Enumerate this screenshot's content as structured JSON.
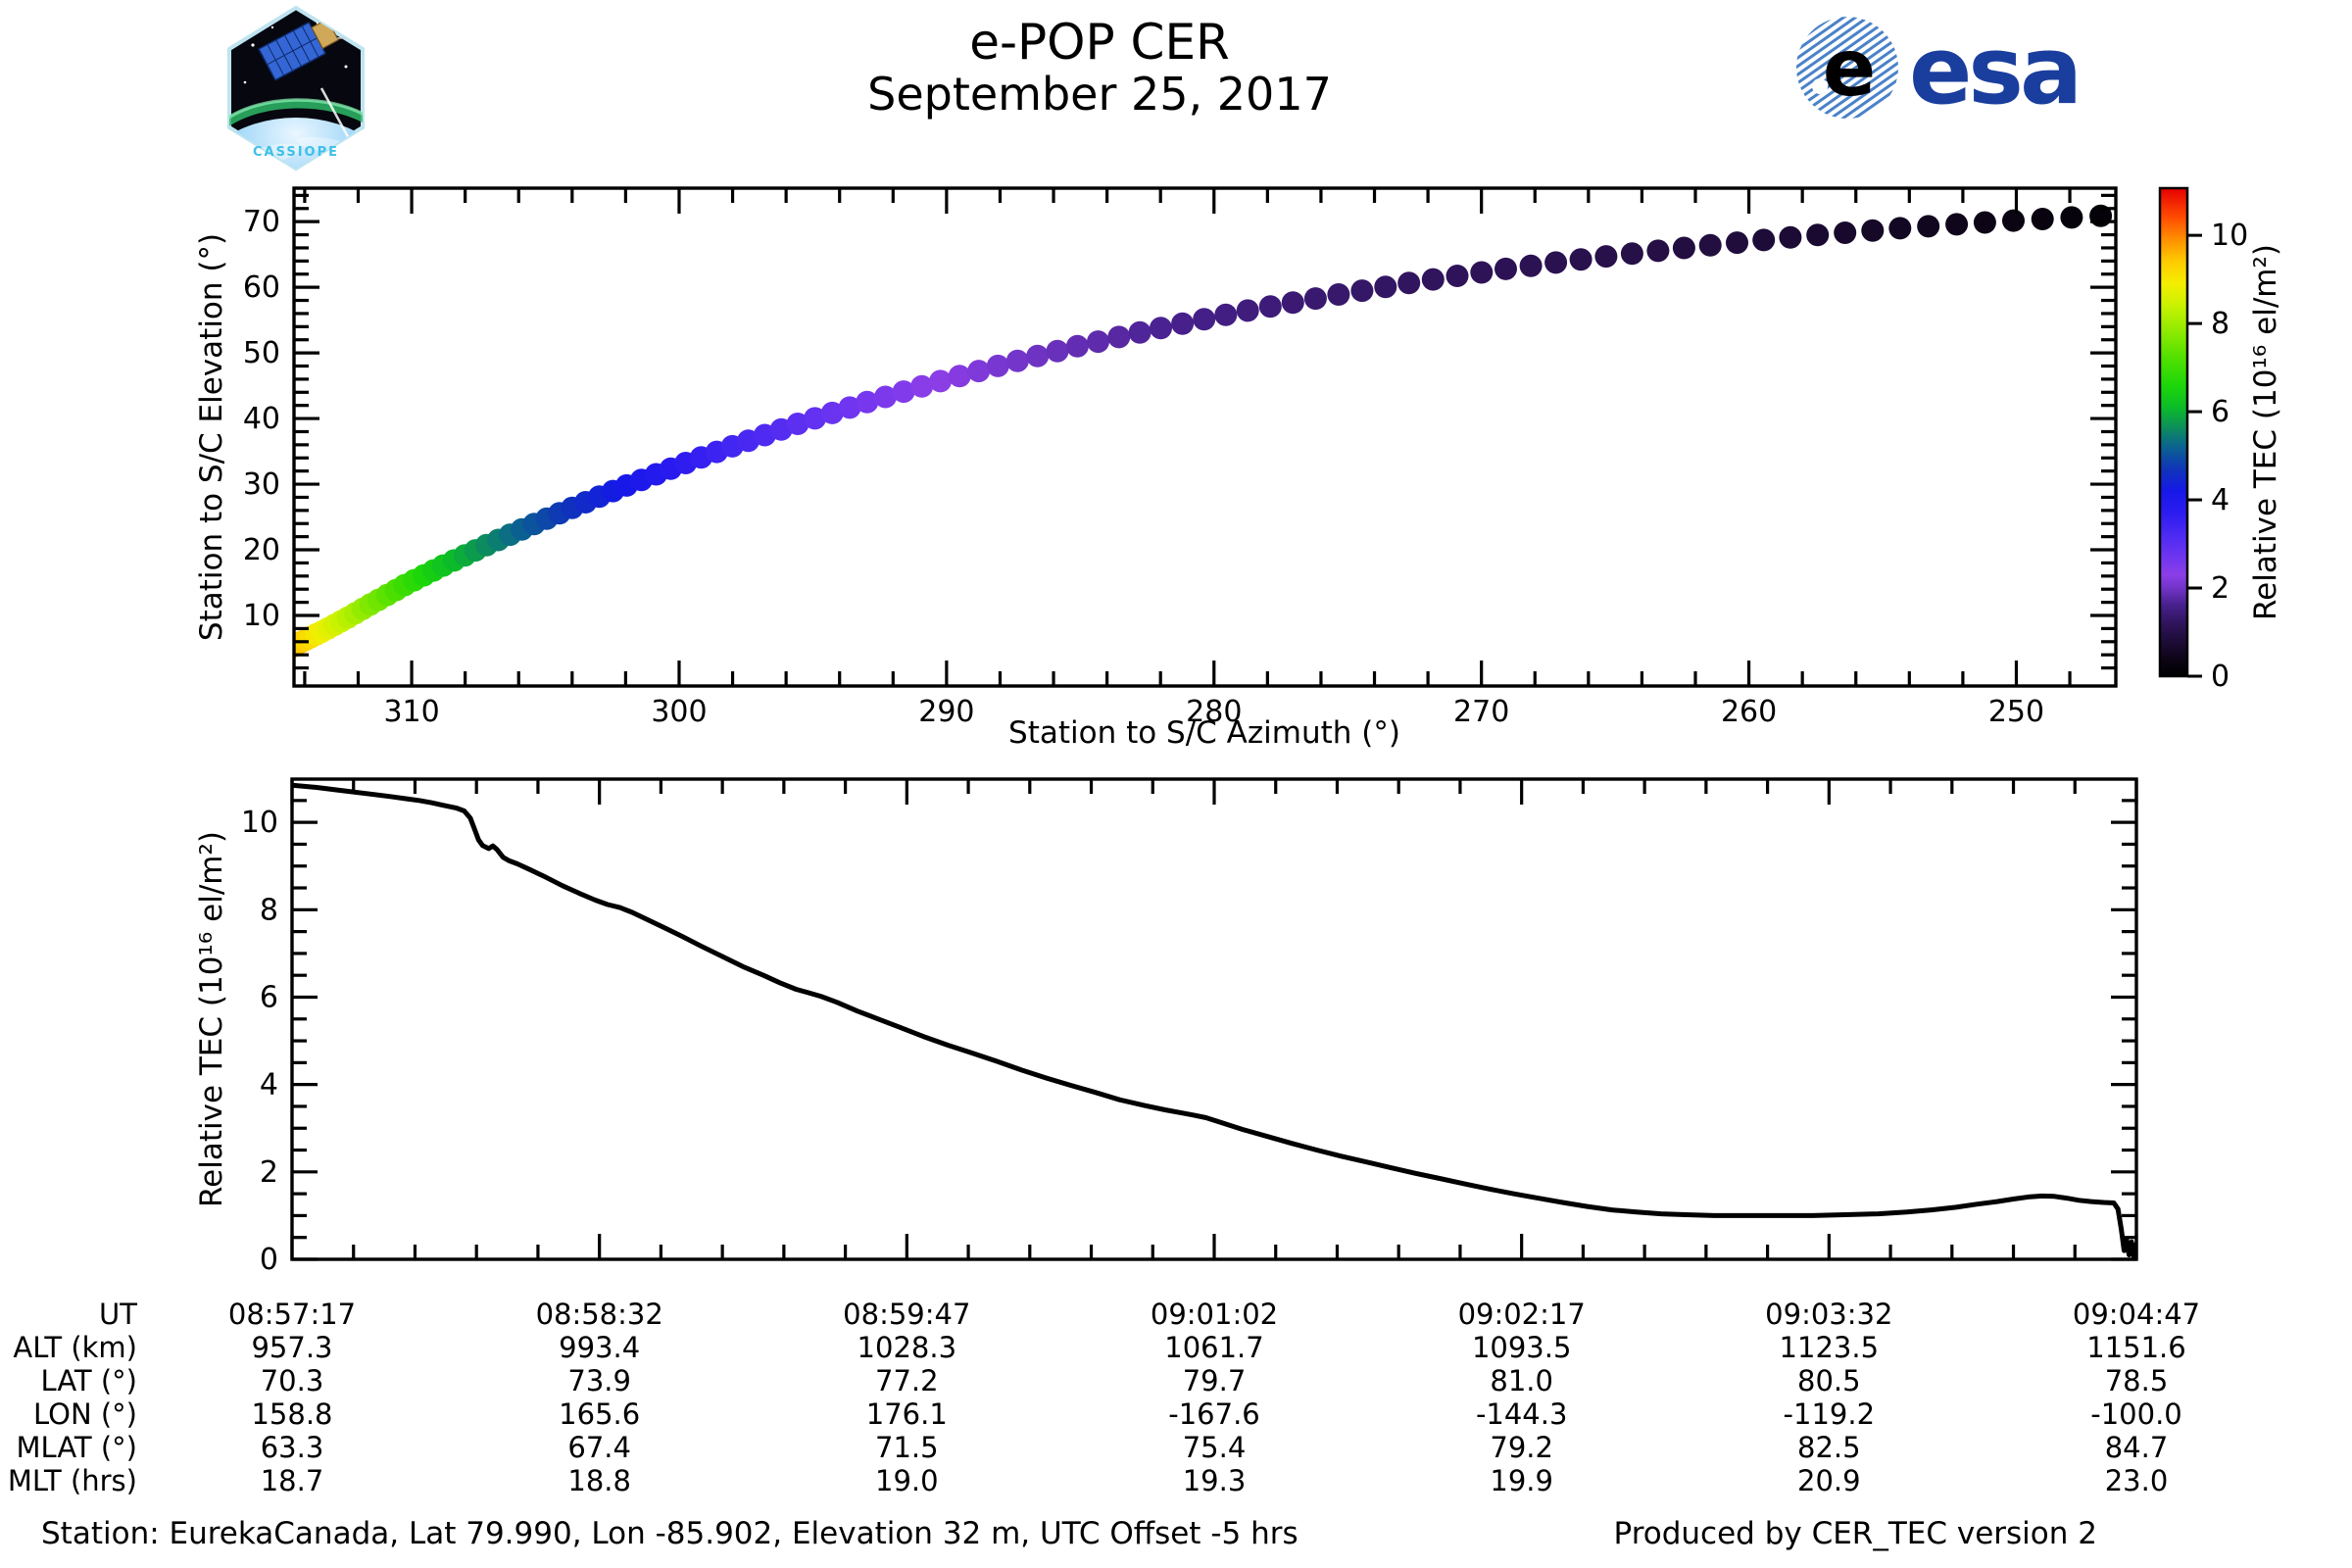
{
  "header": {
    "title": "e-POP CER",
    "subtitle": "September 25, 2017",
    "cassiope_patch_label": "CASSIOPE",
    "esa_wordmark": "esa"
  },
  "colors": {
    "esa_blue": "#1a3e9e",
    "esa_stripe_blue": "#4a82c8",
    "line_color": "#000000",
    "axis_color": "#000000"
  },
  "chart_data": [
    {
      "type": "scatter",
      "name": "station-to-spacecraft-pass",
      "xlabel": "Station to S/C Azimuth (°)",
      "ylabel": "Station to S/C Elevation (°)",
      "x_axis_reversed": true,
      "xlim": [
        314.4,
        246.3
      ],
      "ylim": [
        0,
        75
      ],
      "x_major_ticks": [
        310,
        300,
        290,
        280,
        270,
        260,
        250
      ],
      "y_major_ticks": [
        10,
        20,
        30,
        40,
        50,
        60,
        70
      ],
      "x_minor_step": 2,
      "y_minor_step": 2,
      "colorbar": {
        "label": "Relative TEC (10¹⁶ el/m²)",
        "ticks": [
          0,
          2,
          4,
          6,
          8,
          10
        ],
        "range": [
          0,
          11.07
        ],
        "stops": [
          [
            0.0,
            "#000000"
          ],
          [
            0.4,
            "#0d0517"
          ],
          [
            0.8,
            "#1e0c38"
          ],
          [
            1.2,
            "#30145c"
          ],
          [
            1.6,
            "#46208a"
          ],
          [
            2.0,
            "#7234c8"
          ],
          [
            2.3,
            "#8c3ee8"
          ],
          [
            2.7,
            "#6f35f0"
          ],
          [
            3.2,
            "#4c2af2"
          ],
          [
            3.7,
            "#2d1cf0"
          ],
          [
            4.2,
            "#1618e8"
          ],
          [
            4.7,
            "#0f35b8"
          ],
          [
            5.2,
            "#0b6290"
          ],
          [
            5.7,
            "#0c9455"
          ],
          [
            6.1,
            "#0cbc28"
          ],
          [
            6.6,
            "#1cd609"
          ],
          [
            7.2,
            "#50e000"
          ],
          [
            7.8,
            "#8cea00"
          ],
          [
            8.4,
            "#c8f200"
          ],
          [
            8.9,
            "#f4ee00"
          ],
          [
            9.4,
            "#ffcc00"
          ],
          [
            9.9,
            "#ff9000"
          ],
          [
            10.4,
            "#ff4d00"
          ],
          [
            11.1,
            "#e60000"
          ]
        ]
      },
      "points_azimuth": [
        315.2,
        315.05,
        314.67,
        314.11,
        313.37,
        312.46,
        311.4,
        310.18,
        308.82,
        307.31,
        305.66,
        303.88,
        301.96,
        299.9,
        297.72,
        295.41,
        292.97,
        290.41,
        287.72,
        284.92,
        281.99,
        278.95,
        275.78,
        272.49,
        269.09,
        265.58,
        261.94,
        258.2,
        254.35,
        250.38,
        246.3
      ],
      "points_elevation": [
        3.0,
        3.8,
        4.8,
        6.0,
        7.5,
        9.5,
        12.0,
        14.8,
        17.6,
        20.5,
        23.5,
        26.6,
        29.8,
        33.0,
        36.2,
        39.4,
        42.5,
        45.5,
        48.4,
        51.2,
        53.8,
        56.3,
        58.6,
        60.8,
        62.8,
        64.6,
        66.2,
        67.7,
        69.0,
        70.1,
        71.0
      ],
      "points_tec": [
        10.85,
        10.4,
        9.9,
        9.4,
        8.85,
        8.3,
        7.6,
        6.9,
        6.25,
        5.65,
        5.1,
        4.6,
        4.15,
        3.7,
        3.3,
        2.95,
        2.6,
        2.3,
        2.05,
        1.85,
        1.65,
        1.5,
        1.35,
        1.22,
        1.12,
        1.02,
        0.9,
        0.75,
        0.55,
        0.35,
        0.12
      ]
    },
    {
      "type": "line",
      "name": "relative-tec-time-series",
      "ylabel": "Relative TEC (10¹⁶ el/m²)",
      "ylim": [
        0,
        11
      ],
      "y_major_ticks": [
        0,
        2,
        4,
        6,
        8,
        10
      ],
      "y_minor_step": 0.5,
      "x_range_seconds": [
        0,
        450
      ],
      "x_major_step_seconds": 75,
      "x_minor_step_seconds": 15,
      "x_start_label": "08:57:17",
      "x_end_label": "09:04:47",
      "x_seconds": [
        0,
        6,
        12,
        18,
        24,
        28,
        31,
        34,
        37,
        40,
        42,
        43.5,
        44.5,
        45.5,
        46.5,
        48,
        49,
        50,
        51.5,
        53,
        55,
        58,
        62,
        66,
        70,
        74,
        77,
        80,
        83,
        87,
        91,
        95,
        100,
        105,
        110,
        115,
        119,
        123,
        126,
        129,
        133,
        138,
        143,
        148,
        154,
        160,
        166,
        172,
        178,
        184,
        190,
        196,
        202,
        208,
        213,
        217,
        220,
        223,
        227,
        232,
        238,
        244,
        250,
        256,
        262,
        268,
        274,
        280,
        286,
        292,
        298,
        304,
        310,
        316,
        322,
        328,
        334,
        340,
        347,
        355,
        363,
        371,
        379,
        387,
        394,
        400,
        406,
        411,
        416,
        420,
        424,
        427,
        430,
        433,
        436,
        439,
        442,
        444.5,
        445.5,
        446.3,
        447,
        447.6,
        448.2,
        448.8,
        449.4,
        450
      ],
      "tec": [
        10.85,
        10.8,
        10.73,
        10.66,
        10.59,
        10.54,
        10.5,
        10.45,
        10.39,
        10.33,
        10.26,
        10.1,
        9.85,
        9.6,
        9.47,
        9.4,
        9.46,
        9.38,
        9.2,
        9.12,
        9.05,
        8.92,
        8.74,
        8.55,
        8.38,
        8.22,
        8.12,
        8.05,
        7.94,
        7.76,
        7.58,
        7.4,
        7.16,
        6.93,
        6.7,
        6.5,
        6.33,
        6.18,
        6.1,
        6.02,
        5.88,
        5.68,
        5.5,
        5.32,
        5.1,
        4.9,
        4.72,
        4.53,
        4.33,
        4.15,
        3.98,
        3.82,
        3.65,
        3.52,
        3.42,
        3.35,
        3.3,
        3.24,
        3.12,
        2.97,
        2.81,
        2.65,
        2.5,
        2.36,
        2.23,
        2.1,
        1.97,
        1.85,
        1.73,
        1.61,
        1.5,
        1.4,
        1.3,
        1.21,
        1.13,
        1.08,
        1.04,
        1.02,
        1.0,
        1.0,
        1.0,
        1.0,
        1.02,
        1.04,
        1.08,
        1.13,
        1.19,
        1.26,
        1.32,
        1.38,
        1.43,
        1.45,
        1.44,
        1.4,
        1.35,
        1.32,
        1.3,
        1.29,
        1.15,
        0.7,
        0.2,
        0.45,
        0.1,
        0.4,
        0.05,
        0.35
      ]
    }
  ],
  "table": {
    "row_labels": [
      "UT",
      "ALT (km)",
      "LAT (°)",
      "LON (°)",
      "MLAT (°)",
      "MLT (hrs)"
    ],
    "columns": [
      [
        "08:57:17",
        "957.3",
        "70.3",
        "158.8",
        "63.3",
        "18.7"
      ],
      [
        "08:58:32",
        "993.4",
        "73.9",
        "165.6",
        "67.4",
        "18.8"
      ],
      [
        "08:59:47",
        "1028.3",
        "77.2",
        "176.1",
        "71.5",
        "19.0"
      ],
      [
        "09:01:02",
        "1061.7",
        "79.7",
        "-167.6",
        "75.4",
        "19.3"
      ],
      [
        "09:02:17",
        "1093.5",
        "81.0",
        "-144.3",
        "79.2",
        "19.9"
      ],
      [
        "09:03:32",
        "1123.5",
        "80.5",
        "-119.2",
        "82.5",
        "20.9"
      ],
      [
        "09:04:47",
        "1151.6",
        "78.5",
        "-100.0",
        "84.7",
        "23.0"
      ]
    ]
  },
  "footer": {
    "station_info": "Station: EurekaCanada, Lat 79.990, Lon -85.902, Elevation 32 m, UTC Offset -5 hrs",
    "produced_by": "Produced by CER_TEC version 2"
  }
}
